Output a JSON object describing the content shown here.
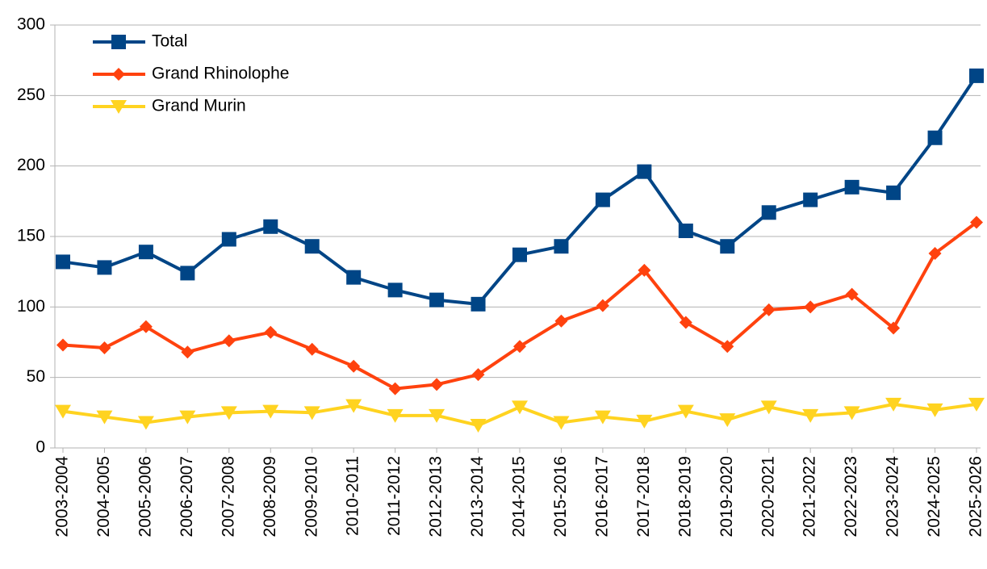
{
  "chart_data": {
    "type": "line",
    "categories": [
      "2003-2004",
      "2004-2005",
      "2005-2006",
      "2006-2007",
      "2007-2008",
      "2008-2009",
      "2009-2010",
      "2010-2011",
      "2011-2012",
      "2012-2013",
      "2013-2014",
      "2014-2015",
      "2015-2016",
      "2016-2017",
      "2017-2018",
      "2018-2019",
      "2019-2020",
      "2020-2021",
      "2021-2022",
      "2022-2023",
      "2023-2024",
      "2024-2025",
      "2025-2026"
    ],
    "series": [
      {
        "name": "Total",
        "color": "#004586",
        "marker": "square",
        "values": [
          132,
          128,
          139,
          124,
          148,
          157,
          143,
          121,
          112,
          105,
          102,
          137,
          143,
          176,
          196,
          154,
          143,
          167,
          176,
          185,
          181,
          220,
          264
        ]
      },
      {
        "name": "Grand Rhinolophe",
        "color": "#ff420e",
        "marker": "diamond",
        "values": [
          73,
          71,
          86,
          68,
          76,
          82,
          70,
          58,
          42,
          45,
          52,
          72,
          90,
          101,
          126,
          89,
          72,
          98,
          100,
          109,
          85,
          138,
          160
        ]
      },
      {
        "name": "Grand Murin",
        "color": "#ffd320",
        "marker": "triangle-down",
        "values": [
          26,
          22,
          18,
          22,
          25,
          26,
          25,
          30,
          23,
          23,
          16,
          29,
          18,
          22,
          19,
          26,
          20,
          29,
          23,
          25,
          31,
          27,
          31
        ]
      }
    ],
    "ylim": [
      0,
      300
    ],
    "yticks": [
      0,
      50,
      100,
      150,
      200,
      250,
      300
    ],
    "grid": true,
    "legend": "top-left"
  }
}
